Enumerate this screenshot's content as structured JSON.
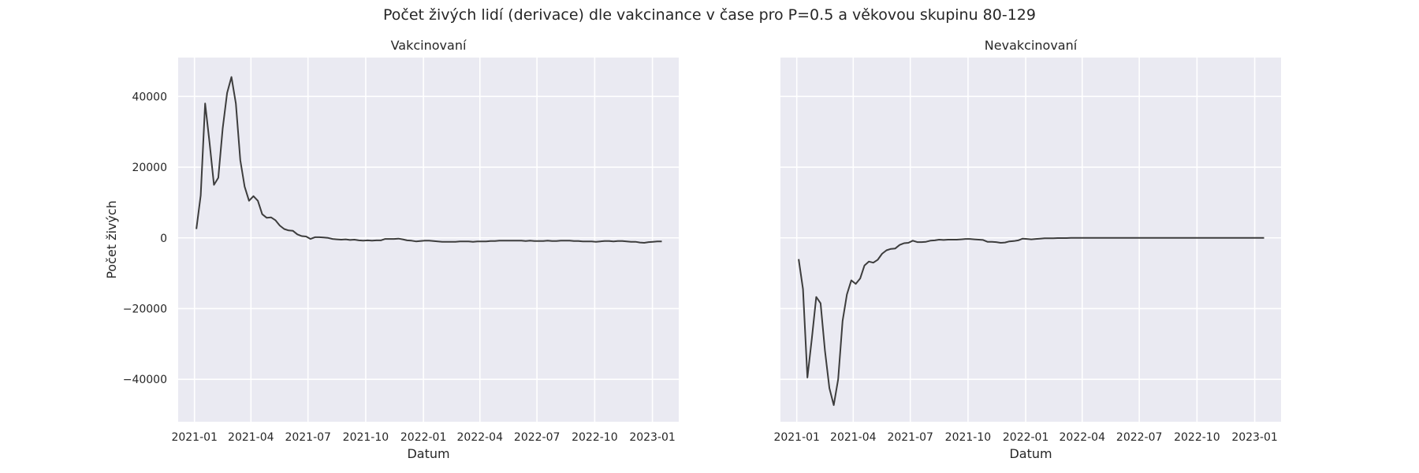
{
  "title": "Počet živých lidí (derivace) dle vakcinance v čase pro P=0.5 a věkovou skupinu 80-129",
  "chart_data": [
    {
      "type": "line",
      "title": "Vakcinovaní",
      "xlabel": "Datum",
      "ylabel": "Počet živých",
      "xlim": [
        "2020-12-06",
        "2023-02-12"
      ],
      "ylim": [
        -52000,
        51000
      ],
      "xticks": [
        "2021-01",
        "2021-04",
        "2021-07",
        "2021-10",
        "2022-01",
        "2022-04",
        "2022-07",
        "2022-10",
        "2023-01"
      ],
      "yticks": [
        40000,
        20000,
        0,
        -20000,
        -40000
      ],
      "ytick_labels": [
        "40000",
        "20000",
        "0",
        "−20000",
        "−40000"
      ],
      "grid": true,
      "line_color": "#3d3d3d",
      "series": [
        {
          "x": [
            "2021-01-04",
            "2021-01-11",
            "2021-01-18",
            "2021-01-25",
            "2021-02-01",
            "2021-02-08",
            "2021-02-15",
            "2021-02-22",
            "2021-03-01",
            "2021-03-08",
            "2021-03-15",
            "2021-03-22",
            "2021-03-29",
            "2021-04-05",
            "2021-04-12",
            "2021-04-19",
            "2021-04-26",
            "2021-05-03",
            "2021-05-10",
            "2021-05-17",
            "2021-05-24",
            "2021-05-31",
            "2021-06-07",
            "2021-06-14",
            "2021-06-21",
            "2021-06-28",
            "2021-07-05",
            "2021-07-12",
            "2021-07-19",
            "2021-07-26",
            "2021-08-02",
            "2021-08-09",
            "2021-08-16",
            "2021-08-23",
            "2021-08-30",
            "2021-09-06",
            "2021-09-13",
            "2021-09-20",
            "2021-09-27",
            "2021-10-04",
            "2021-10-11",
            "2021-10-18",
            "2021-10-25",
            "2021-11-01",
            "2021-11-08",
            "2021-11-15",
            "2021-11-22",
            "2021-11-29",
            "2021-12-06",
            "2021-12-13",
            "2021-12-20",
            "2021-12-27",
            "2022-01-03",
            "2022-01-10",
            "2022-01-17",
            "2022-01-24",
            "2022-01-31",
            "2022-02-07",
            "2022-02-14",
            "2022-02-21",
            "2022-02-28",
            "2022-03-07",
            "2022-03-14",
            "2022-03-21",
            "2022-03-28",
            "2022-04-04",
            "2022-04-11",
            "2022-04-18",
            "2022-04-25",
            "2022-05-02",
            "2022-05-09",
            "2022-05-16",
            "2022-05-23",
            "2022-05-30",
            "2022-06-06",
            "2022-06-13",
            "2022-06-20",
            "2022-06-27",
            "2022-07-04",
            "2022-07-11",
            "2022-07-18",
            "2022-07-25",
            "2022-08-01",
            "2022-08-08",
            "2022-08-15",
            "2022-08-22",
            "2022-08-29",
            "2022-09-05",
            "2022-09-12",
            "2022-09-19",
            "2022-09-26",
            "2022-10-03",
            "2022-10-10",
            "2022-10-17",
            "2022-10-24",
            "2022-10-31",
            "2022-11-07",
            "2022-11-14",
            "2022-11-21",
            "2022-11-28",
            "2022-12-05",
            "2022-12-12",
            "2022-12-19",
            "2022-12-26",
            "2023-01-02",
            "2023-01-09",
            "2023-01-16"
          ],
          "y": [
            2500,
            12000,
            38000,
            27000,
            15000,
            17000,
            31000,
            41000,
            45500,
            38000,
            22000,
            14500,
            10500,
            11800,
            10500,
            6700,
            5700,
            5800,
            5000,
            3500,
            2500,
            2100,
            2000,
            1000,
            500,
            400,
            -300,
            200,
            200,
            100,
            0,
            -300,
            -400,
            -500,
            -400,
            -600,
            -500,
            -700,
            -800,
            -700,
            -800,
            -700,
            -700,
            -300,
            -300,
            -300,
            -200,
            -400,
            -700,
            -800,
            -1000,
            -900,
            -800,
            -800,
            -900,
            -1000,
            -1100,
            -1100,
            -1100,
            -1100,
            -1000,
            -1000,
            -1000,
            -1100,
            -1000,
            -1000,
            -1000,
            -900,
            -900,
            -800,
            -800,
            -800,
            -800,
            -800,
            -800,
            -900,
            -800,
            -900,
            -900,
            -900,
            -800,
            -900,
            -900,
            -800,
            -800,
            -800,
            -900,
            -900,
            -1000,
            -1000,
            -1000,
            -1100,
            -1000,
            -900,
            -900,
            -1000,
            -900,
            -900,
            -1000,
            -1100,
            -1100,
            -1300,
            -1400,
            -1200,
            -1100,
            -1000,
            -1000
          ]
        }
      ]
    },
    {
      "type": "line",
      "title": "Nevakcinovaní",
      "xlabel": "Datum",
      "ylabel": "",
      "xlim": [
        "2020-12-06",
        "2023-02-12"
      ],
      "ylim": [
        -52000,
        51000
      ],
      "xticks": [
        "2021-01",
        "2021-04",
        "2021-07",
        "2021-10",
        "2022-01",
        "2022-04",
        "2022-07",
        "2022-10",
        "2023-01"
      ],
      "grid": true,
      "line_color": "#3d3d3d",
      "series": [
        {
          "x": [
            "2021-01-04",
            "2021-01-11",
            "2021-01-18",
            "2021-01-25",
            "2021-02-01",
            "2021-02-08",
            "2021-02-15",
            "2021-02-22",
            "2021-03-01",
            "2021-03-08",
            "2021-03-15",
            "2021-03-22",
            "2021-03-29",
            "2021-04-05",
            "2021-04-12",
            "2021-04-19",
            "2021-04-26",
            "2021-05-03",
            "2021-05-10",
            "2021-05-17",
            "2021-05-24",
            "2021-05-31",
            "2021-06-07",
            "2021-06-14",
            "2021-06-21",
            "2021-06-28",
            "2021-07-05",
            "2021-07-12",
            "2021-07-19",
            "2021-07-26",
            "2021-08-02",
            "2021-08-09",
            "2021-08-16",
            "2021-08-23",
            "2021-08-30",
            "2021-09-06",
            "2021-09-13",
            "2021-09-20",
            "2021-09-27",
            "2021-10-04",
            "2021-10-11",
            "2021-10-18",
            "2021-10-25",
            "2021-11-01",
            "2021-11-08",
            "2021-11-15",
            "2021-11-22",
            "2021-11-29",
            "2021-12-06",
            "2021-12-13",
            "2021-12-20",
            "2021-12-27",
            "2022-01-03",
            "2022-01-10",
            "2022-01-17",
            "2022-01-24",
            "2022-01-31",
            "2022-02-07",
            "2022-02-14",
            "2022-02-21",
            "2022-02-28",
            "2022-03-07",
            "2022-03-14",
            "2022-04-11",
            "2022-06-06",
            "2022-08-01",
            "2022-10-03",
            "2022-12-05",
            "2023-01-16"
          ],
          "y": [
            -6000,
            -14500,
            -39500,
            -28500,
            -16700,
            -18500,
            -32000,
            -42500,
            -47300,
            -40000,
            -23500,
            -16000,
            -12000,
            -13000,
            -11500,
            -7800,
            -6700,
            -7000,
            -6200,
            -4500,
            -3500,
            -3100,
            -3000,
            -2000,
            -1500,
            -1400,
            -800,
            -1200,
            -1200,
            -1100,
            -800,
            -700,
            -500,
            -600,
            -500,
            -500,
            -500,
            -400,
            -300,
            -300,
            -400,
            -500,
            -600,
            -1100,
            -1100,
            -1200,
            -1400,
            -1300,
            -1000,
            -900,
            -700,
            -200,
            -300,
            -400,
            -300,
            -200,
            -100,
            -100,
            -100,
            -50,
            -50,
            -50,
            0,
            0,
            0,
            0,
            0,
            0,
            0
          ]
        }
      ]
    }
  ]
}
